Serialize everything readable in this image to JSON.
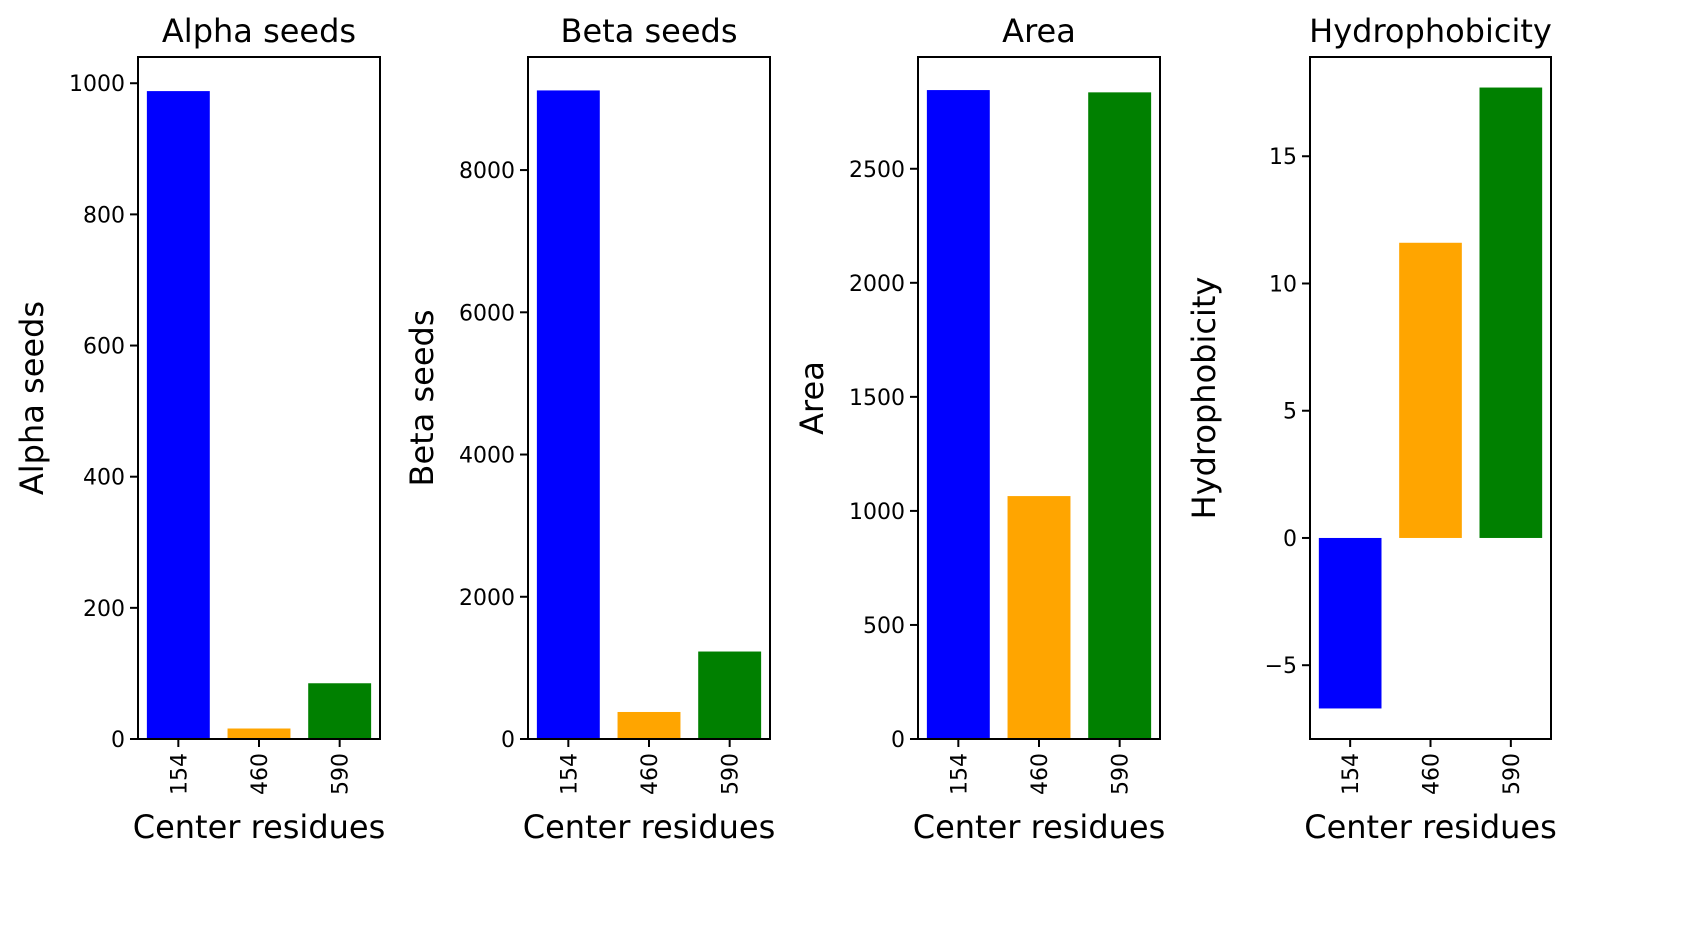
{
  "chart_data": [
    {
      "type": "bar",
      "title": "Alpha seeds",
      "xlabel": "Center residues",
      "ylabel": "Alpha seeds",
      "categories": [
        "154",
        "460",
        "590"
      ],
      "values": [
        988,
        16,
        85
      ],
      "colors": [
        "#0000ff",
        "#ffa500",
        "#008000"
      ],
      "ylim": [
        0,
        1040
      ],
      "yticks": [
        0,
        200,
        400,
        600,
        800,
        1000
      ],
      "ytick_labels": [
        "0",
        "200",
        "400",
        "600",
        "800",
        "1000"
      ]
    },
    {
      "type": "bar",
      "title": "Beta seeds",
      "xlabel": "Center residues",
      "ylabel": "Beta seeds",
      "categories": [
        "154",
        "460",
        "590"
      ],
      "values": [
        9120,
        380,
        1230
      ],
      "colors": [
        "#0000ff",
        "#ffa500",
        "#008000"
      ],
      "ylim": [
        0,
        9590
      ],
      "yticks": [
        0,
        2000,
        4000,
        6000,
        8000
      ],
      "ytick_labels": [
        "0",
        "2000",
        "4000",
        "6000",
        "8000"
      ]
    },
    {
      "type": "bar",
      "title": "Area",
      "xlabel": "Center residues",
      "ylabel": "Area",
      "categories": [
        "154",
        "460",
        "590"
      ],
      "values": [
        2845,
        1065,
        2835
      ],
      "colors": [
        "#0000ff",
        "#ffa500",
        "#008000"
      ],
      "ylim": [
        0,
        2990
      ],
      "yticks": [
        0,
        500,
        1000,
        1500,
        2000,
        2500
      ],
      "ytick_labels": [
        "0",
        "500",
        "1000",
        "1500",
        "2000",
        "2500"
      ]
    },
    {
      "type": "bar",
      "title": "Hydrophobicity",
      "xlabel": "Center residues",
      "ylabel": "Hydrophobicity",
      "categories": [
        "154",
        "460",
        "590"
      ],
      "values": [
        -6.7,
        11.6,
        17.7
      ],
      "colors": [
        "#0000ff",
        "#ffa500",
        "#008000"
      ],
      "ylim": [
        -7.9,
        18.9
      ],
      "yticks": [
        -5,
        0,
        5,
        10,
        15
      ],
      "ytick_labels": [
        "−5",
        "0",
        "5",
        "10",
        "15"
      ]
    }
  ]
}
